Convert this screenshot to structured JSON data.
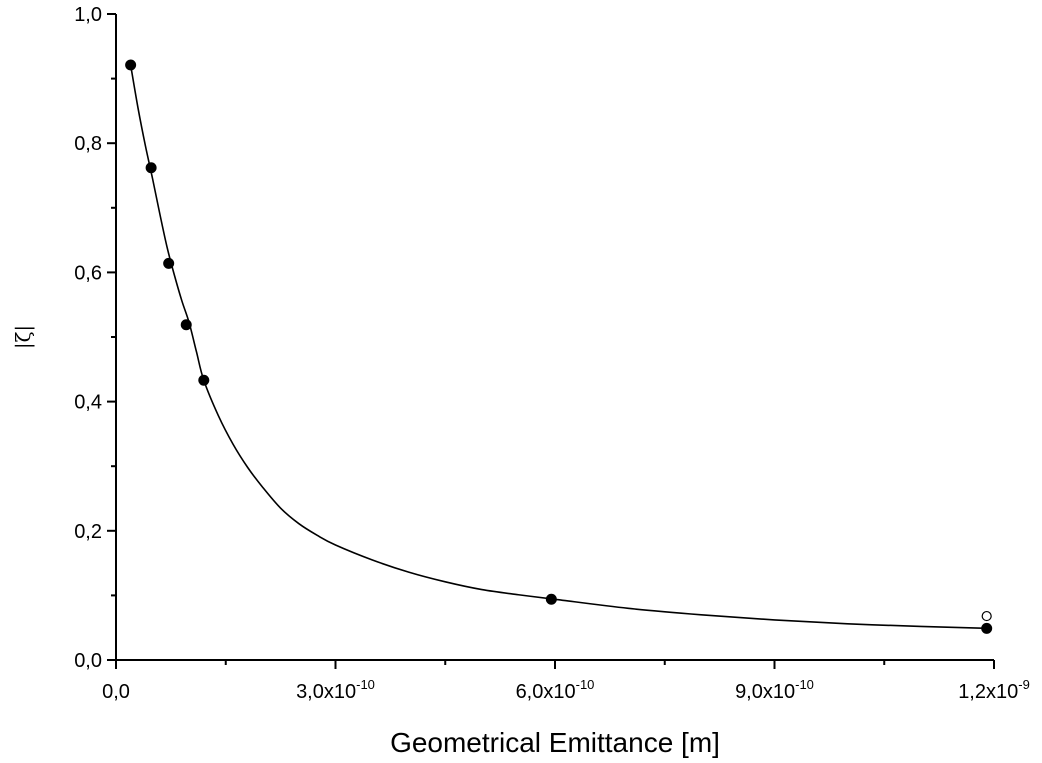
{
  "chart_data": {
    "type": "scatter",
    "title": "",
    "xlabel": "Geometrical Emittance [m]",
    "ylabel": "|ζ|",
    "xlim": [
      0,
      1.2e-09
    ],
    "ylim": [
      0,
      1.0
    ],
    "grid": false,
    "x_ticks": [
      {
        "value": 0,
        "mantissa": "0,0",
        "exponent": ""
      },
      {
        "value": 3e-10,
        "mantissa": "3,0x10",
        "exponent": "-10"
      },
      {
        "value": 6e-10,
        "mantissa": "6,0x10",
        "exponent": "-10"
      },
      {
        "value": 9e-10,
        "mantissa": "9,0x10",
        "exponent": "-10"
      },
      {
        "value": 1.2e-09,
        "mantissa": "1,2x10",
        "exponent": "-9"
      }
    ],
    "y_ticks": [
      {
        "value": 0.0,
        "label": "0,0"
      },
      {
        "value": 0.2,
        "label": "0,2"
      },
      {
        "value": 0.4,
        "label": "0,4"
      },
      {
        "value": 0.6,
        "label": "0,6"
      },
      {
        "value": 0.8,
        "label": "0,8"
      },
      {
        "value": 1.0,
        "label": "1,0"
      }
    ],
    "x_minor_ticks": [
      1.5e-10,
      4.5e-10,
      7.5e-10,
      1.05e-09
    ],
    "y_minor_ticks": [
      0.1,
      0.3,
      0.5,
      0.7,
      0.9
    ],
    "series": [
      {
        "marker": "filled-circle",
        "x": [
          2e-11,
          4.8e-11,
          7.2e-11,
          9.6e-11,
          1.2e-10,
          5.95e-10,
          1.19e-09
        ],
        "y": [
          0.921,
          0.762,
          0.614,
          0.519,
          0.433,
          0.094,
          0.049
        ]
      },
      {
        "marker": "open-circle",
        "x": [
          1.19e-09
        ],
        "y": [
          0.068
        ]
      }
    ],
    "fit_curve": {
      "x": [
        2e-11,
        3e-11,
        4e-11,
        5e-11,
        6e-11,
        7e-11,
        8e-11,
        9e-11,
        1e-10,
        1.1e-10,
        1.2e-10,
        1.4e-10,
        1.6e-10,
        1.8e-10,
        2e-10,
        2.25e-10,
        2.5e-10,
        2.75e-10,
        3e-10,
        3.5e-10,
        4e-10,
        4.5e-10,
        5e-10,
        5.5e-10,
        6e-10,
        7e-10,
        8e-10,
        9e-10,
        1e-09,
        1.1e-09,
        1.19e-09
      ],
      "y": [
        0.921,
        0.855,
        0.797,
        0.745,
        0.69,
        0.638,
        0.595,
        0.556,
        0.522,
        0.477,
        0.433,
        0.378,
        0.334,
        0.298,
        0.268,
        0.235,
        0.211,
        0.193,
        0.178,
        0.155,
        0.136,
        0.121,
        0.109,
        0.101,
        0.094,
        0.08,
        0.07,
        0.062,
        0.056,
        0.052,
        0.049
      ]
    }
  }
}
